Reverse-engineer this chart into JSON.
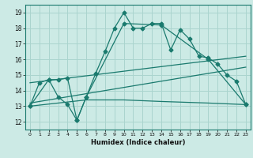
{
  "xlabel": "Humidex (Indice chaleur)",
  "xlim": [
    -0.5,
    23.5
  ],
  "ylim": [
    11.5,
    19.5
  ],
  "xticks": [
    0,
    1,
    2,
    3,
    4,
    5,
    6,
    7,
    8,
    9,
    10,
    11,
    12,
    13,
    14,
    15,
    16,
    17,
    18,
    19,
    20,
    21,
    22,
    23
  ],
  "yticks": [
    12,
    13,
    14,
    15,
    16,
    17,
    18,
    19
  ],
  "bg_color": "#cceae5",
  "grid_color": "#aad4ce",
  "line_color": "#1a7a6e",
  "line1_x": [
    0,
    1,
    2,
    3,
    4,
    5,
    6,
    7,
    8,
    9,
    10,
    11,
    12,
    13,
    14,
    15,
    16,
    17,
    18,
    19,
    20,
    21,
    22,
    23
  ],
  "line1_y": [
    13.0,
    14.5,
    14.7,
    14.7,
    14.8,
    12.1,
    13.6,
    15.1,
    16.5,
    18.0,
    19.0,
    18.0,
    18.0,
    18.3,
    18.3,
    16.6,
    17.9,
    17.3,
    16.2,
    16.1,
    15.7,
    15.0,
    14.6,
    13.1
  ],
  "line2_x": [
    0,
    2,
    3,
    4,
    5,
    6,
    10,
    14,
    19,
    23
  ],
  "line2_y": [
    13.0,
    14.7,
    13.6,
    13.1,
    12.1,
    13.6,
    18.3,
    18.2,
    16.0,
    13.1
  ],
  "line3_x": [
    0,
    23
  ],
  "line3_y": [
    14.5,
    16.2
  ],
  "line4_x": [
    0,
    23
  ],
  "line4_y": [
    13.2,
    15.5
  ],
  "line5_x": [
    0,
    6,
    10,
    14,
    19,
    23
  ],
  "line5_y": [
    13.0,
    13.4,
    13.4,
    13.3,
    13.2,
    13.1
  ]
}
